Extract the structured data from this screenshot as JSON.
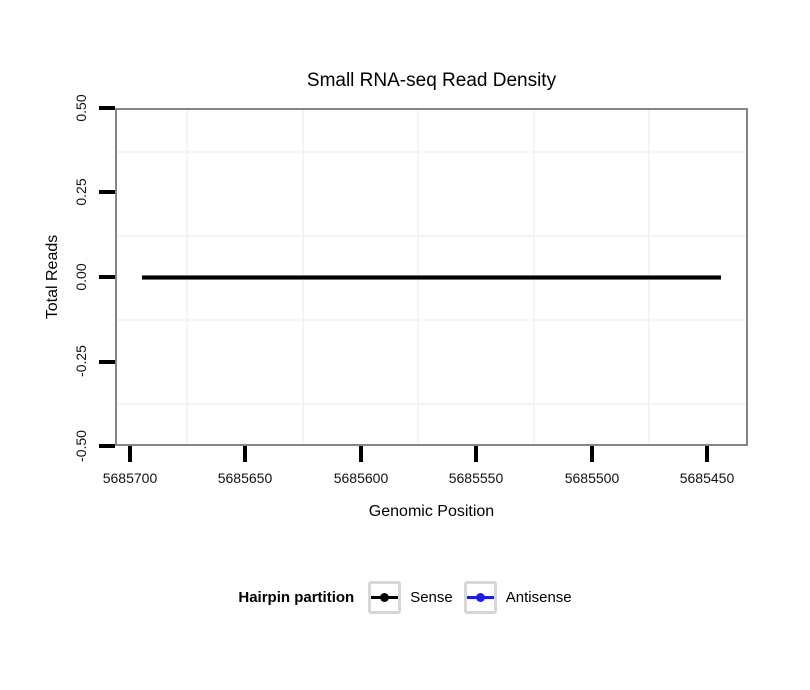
{
  "chart_data": {
    "type": "line",
    "title": "Small RNA-seq Read Density",
    "xlabel": "Genomic Position",
    "ylabel": "Total Reads",
    "x_tick_labels": [
      "5685700",
      "5685650",
      "5685600",
      "5685550",
      "5685500",
      "5685450"
    ],
    "y_tick_labels": [
      "0.50",
      "0.25",
      "0.00",
      "-0.25",
      "-0.50"
    ],
    "x_axis": {
      "reversed": true,
      "visible_min": 5685432,
      "visible_max": 5685707,
      "tick_step": 50
    },
    "ylim": [
      -0.5,
      0.5
    ],
    "grid": {
      "major": "none",
      "minor": "shown",
      "minor_color": "#f4f4f4"
    },
    "panel_border_color": "#858585",
    "series": [
      {
        "name": "Sense",
        "color": "#000000",
        "y_constant": 0,
        "x_start": 5685694,
        "x_end": 5685444
      },
      {
        "name": "Antisense",
        "color": "#1a1aff",
        "y_constant": 0,
        "x_start": 5685694,
        "x_end": 5685444
      }
    ],
    "legend": {
      "title": "Hairpin partition",
      "position": "bottom",
      "entries": [
        {
          "label": "Sense",
          "color": "#000000"
        },
        {
          "label": "Antisense",
          "color": "#1a1aff"
        }
      ]
    }
  }
}
